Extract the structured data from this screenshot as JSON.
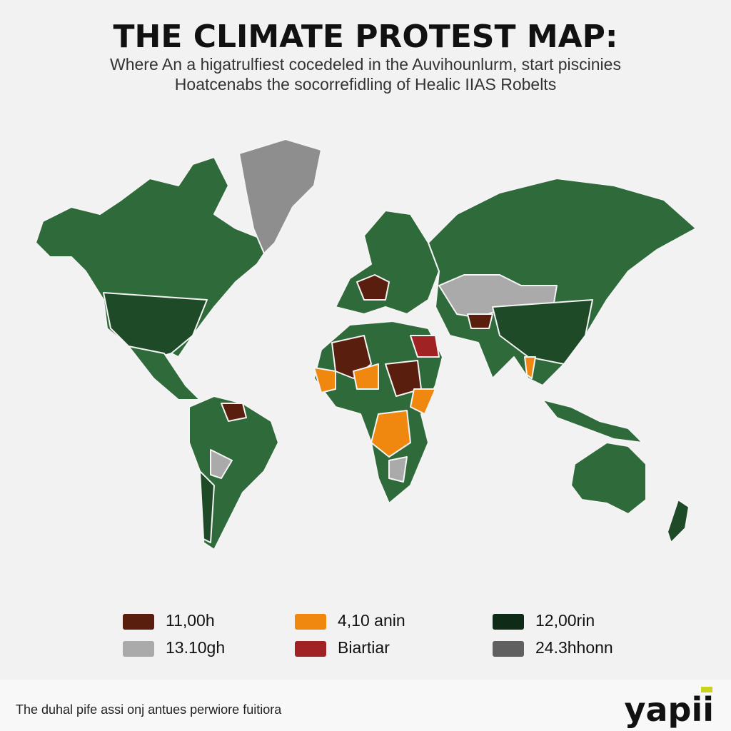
{
  "header": {
    "title": "THE CLIMATE PROTEST MAP:",
    "subtitle": [
      "Where An a higatrulfiest cocedeled in the Auvihounlurm, start piscinies",
      "Hoatcenabs the socorrefidling of Healic IIAS Robelts"
    ]
  },
  "legend": {
    "items": [
      {
        "label": "11,00h",
        "color": "#5a1e0e"
      },
      {
        "label": "4,10 anin",
        "color": "#f0870f"
      },
      {
        "label": "12,00rin",
        "color": "#0f2b17"
      },
      {
        "label": "13.10gh",
        "color": "#aaaaaa"
      },
      {
        "label": "Biartiar",
        "color": "#a02222"
      },
      {
        "label": "24.3hhonn",
        "color": "#606060"
      }
    ]
  },
  "footer": {
    "caption": "The duhal pife assi onj antues perwiore fuitiora",
    "logo": "yapii"
  }
}
